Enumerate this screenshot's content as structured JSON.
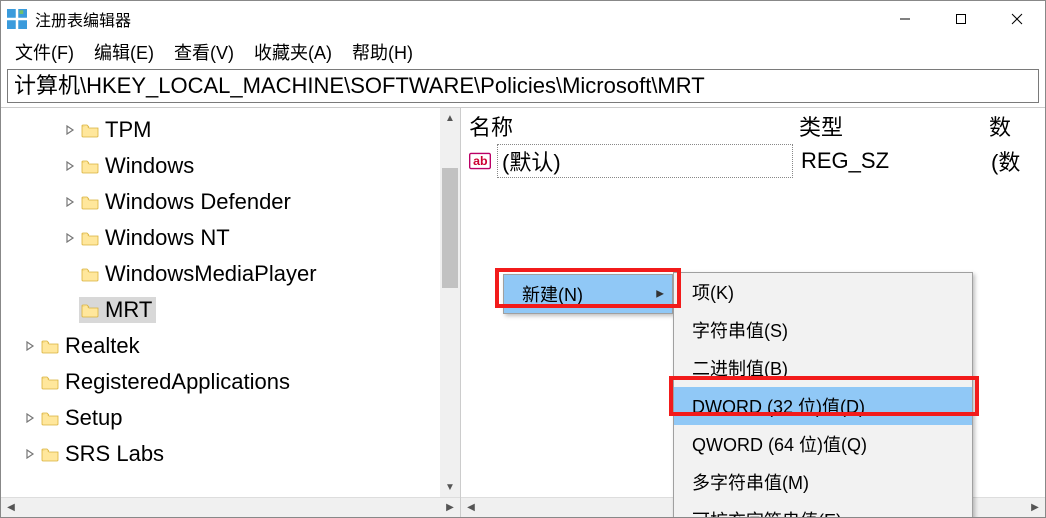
{
  "window": {
    "title": "注册表编辑器"
  },
  "menubar": {
    "items": [
      "文件(F)",
      "编辑(E)",
      "查看(V)",
      "收藏夹(A)",
      "帮助(H)"
    ]
  },
  "address": "计算机\\HKEY_LOCAL_MACHINE\\SOFTWARE\\Policies\\Microsoft\\MRT",
  "tree": {
    "items": [
      {
        "label": "TPM",
        "indent": 60,
        "expander": ">"
      },
      {
        "label": "Windows",
        "indent": 60,
        "expander": ">"
      },
      {
        "label": "Windows Defender",
        "indent": 60,
        "expander": ">"
      },
      {
        "label": "Windows NT",
        "indent": 60,
        "expander": ">"
      },
      {
        "label": "WindowsMediaPlayer",
        "indent": 60,
        "expander": ""
      },
      {
        "label": "MRT",
        "indent": 60,
        "expander": "",
        "selected": true
      },
      {
        "label": "Realtek",
        "indent": 20,
        "expander": ">"
      },
      {
        "label": "RegisteredApplications",
        "indent": 20,
        "expander": ""
      },
      {
        "label": "Setup",
        "indent": 20,
        "expander": ">"
      },
      {
        "label": "SRS Labs",
        "indent": 20,
        "expander": ">"
      }
    ]
  },
  "list": {
    "columns": {
      "name": "名称",
      "type": "类型",
      "data": "数"
    },
    "rows": [
      {
        "name": "(默认)",
        "type": "REG_SZ",
        "data": "(数"
      }
    ]
  },
  "context_primary": {
    "items": [
      {
        "label": "新建(N)",
        "highlight": true,
        "submenu": true
      }
    ]
  },
  "context_secondary": {
    "items": [
      {
        "label": "项(K)"
      },
      {
        "label": "字符串值(S)"
      },
      {
        "label": "二进制值(B)"
      },
      {
        "label": "DWORD (32 位)值(D)",
        "highlight": true
      },
      {
        "label": "QWORD (64 位)值(Q)"
      },
      {
        "label": "多字符串值(M)"
      },
      {
        "label": "可扩充字符串值(E)"
      }
    ]
  },
  "colors": {
    "highlight_red": "#f21b1b",
    "menu_highlight": "#90c8f6",
    "tree_selected": "#d8d8d8",
    "folder_fill": "#ffe79c",
    "folder_stroke": "#d9b13b"
  }
}
